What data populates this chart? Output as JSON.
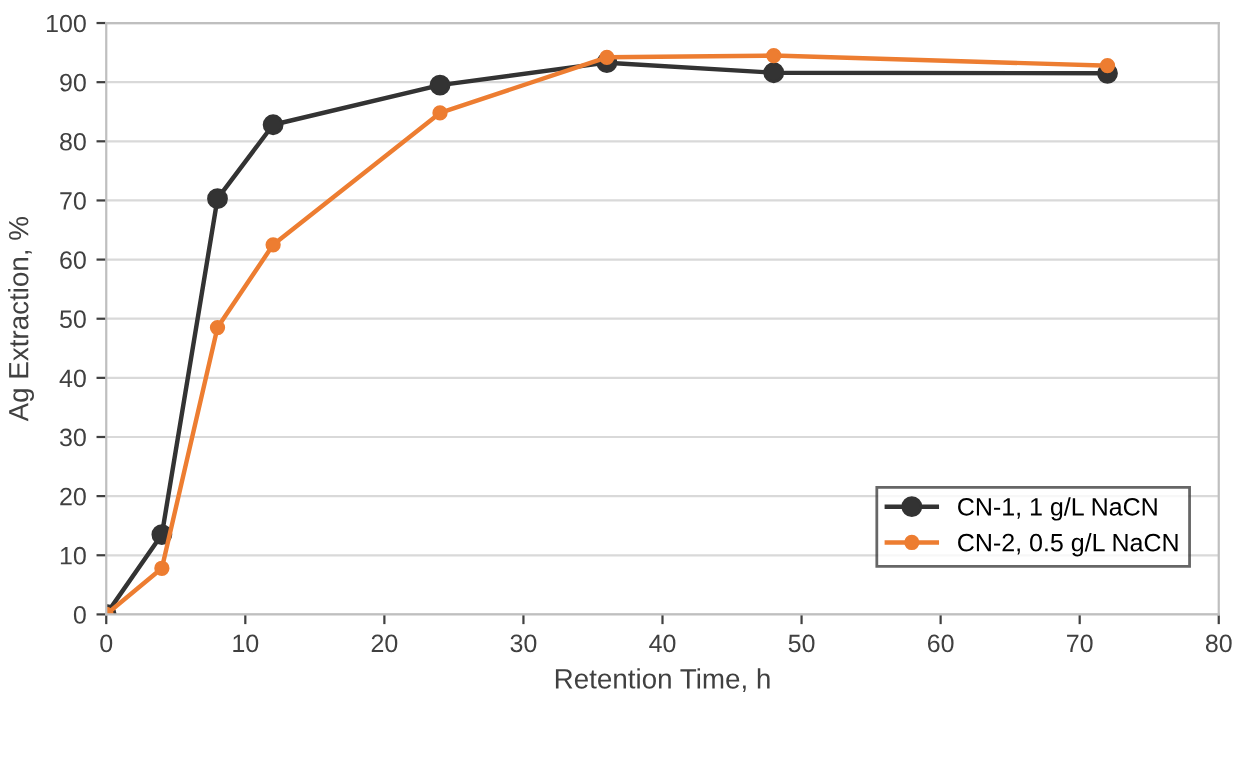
{
  "chart_data": {
    "type": "line",
    "xlabel": "Retention Time, h",
    "ylabel": "Ag Extraction, %",
    "xlim": [
      0,
      80
    ],
    "xticks": [
      0,
      10,
      20,
      30,
      40,
      50,
      60,
      70,
      80
    ],
    "ylim": [
      0,
      100
    ],
    "yticks": [
      0,
      10,
      20,
      30,
      40,
      50,
      60,
      70,
      80,
      90,
      100
    ],
    "grid": "y",
    "legend": "bottom right",
    "marker": "circle",
    "line_style": "solid",
    "series": [
      {
        "name": "CN-1, 1 g/L NaCN",
        "color": "#333333",
        "x": [
          0,
          4,
          8,
          12,
          24,
          36,
          48,
          72
        ],
        "values": [
          0,
          13.5,
          70.3,
          82.8,
          89.5,
          93.3,
          91.6,
          91.5
        ]
      },
      {
        "name": "CN-2, 0.5 g/L NaCN",
        "color": "#ed7d31",
        "x": [
          0,
          4,
          8,
          12,
          24,
          36,
          48,
          72
        ],
        "values": [
          0,
          7.8,
          48.5,
          62.5,
          84.8,
          94.2,
          94.5,
          92.8
        ]
      }
    ]
  }
}
